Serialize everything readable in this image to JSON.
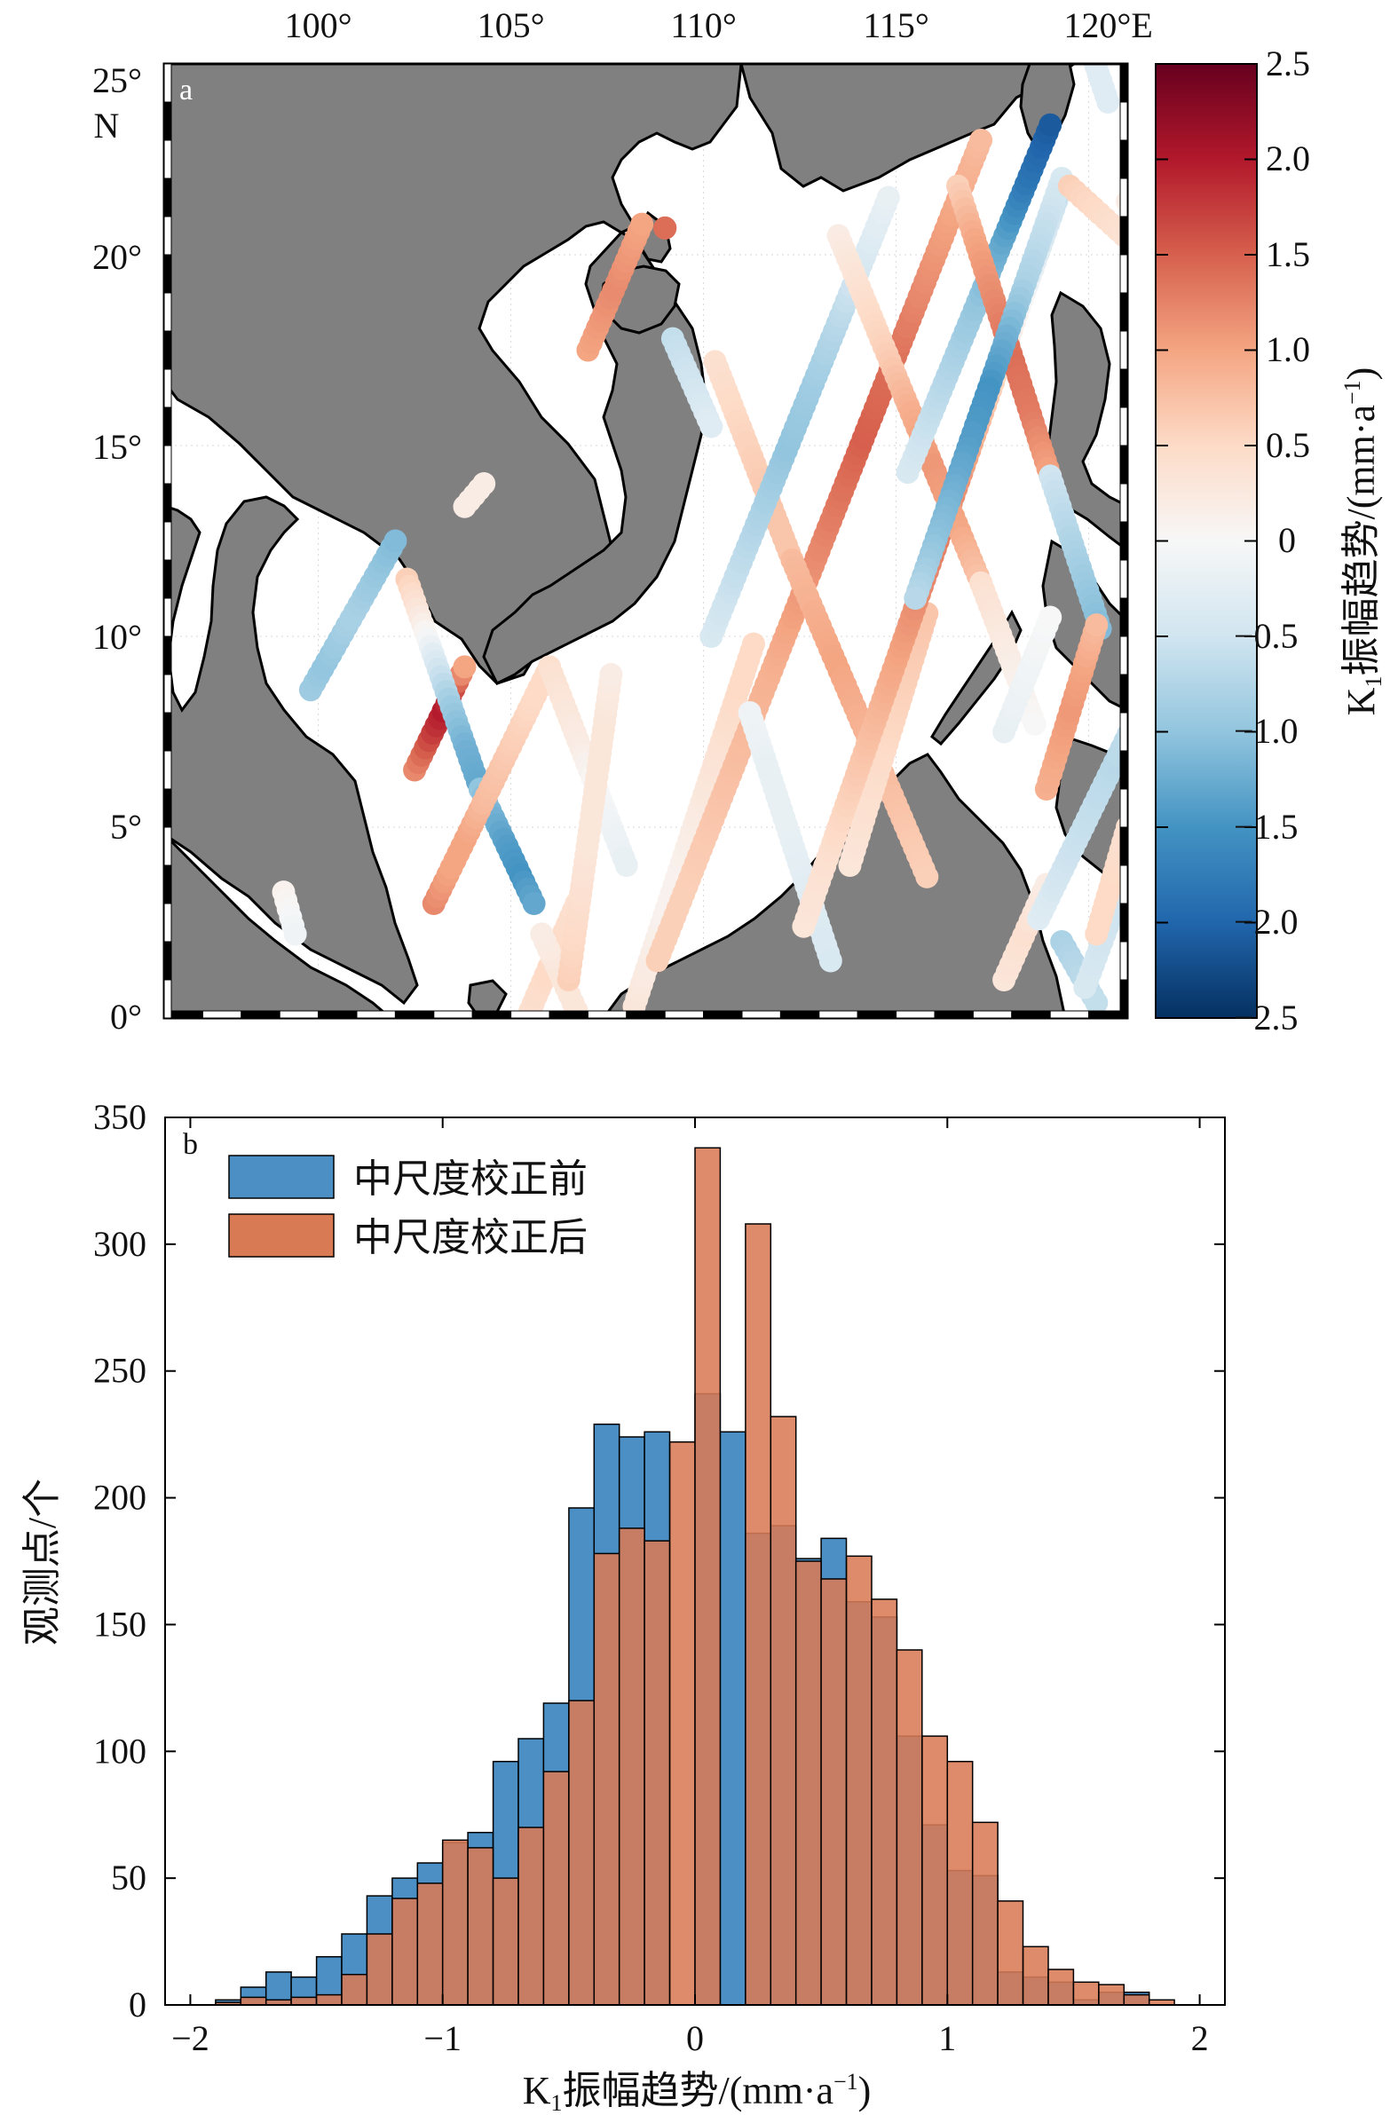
{
  "chart_data": [
    {
      "type": "map",
      "panel_label": "a",
      "lon_ticks": [
        "100°",
        "105°",
        "110°",
        "115°",
        "120°E"
      ],
      "lat_ticks": [
        "25°",
        "20°",
        "15°",
        "10°",
        "5°",
        "0°"
      ],
      "lat_top_suffix": "N",
      "lon_range": [
        96,
        121
      ],
      "lat_range": [
        0,
        25
      ],
      "land_color": "#808080",
      "colorbar": {
        "label_main": "K",
        "label_sub": "1",
        "label_rest": "振幅趋势/(mm·a",
        "label_sup": "−1",
        "label_end": ")",
        "range": [
          -2.5,
          2.5
        ],
        "ticks": [
          "2.5",
          "2.0",
          "1.5",
          "1.0",
          "0.5",
          "0",
          "−0.5",
          "−1.0",
          "−1.5",
          "−2.0",
          "−2.5"
        ],
        "colors": [
          "#053061",
          "#2166ac",
          "#4393c3",
          "#92c5de",
          "#d1e5f0",
          "#f7f7f7",
          "#fddbc7",
          "#f4a582",
          "#d6604d",
          "#b2182b",
          "#67001f"
        ]
      },
      "tracks": [
        {
          "from": [
            99.8,
            8.6
          ],
          "to": [
            102.0,
            12.5
          ],
          "values": [
            -0.9,
            -1.0,
            -0.9,
            -0.8,
            -0.9,
            -1.0,
            -1.1
          ]
        },
        {
          "from": [
            102.5,
            6.5
          ],
          "to": [
            103.8,
            9.2
          ],
          "values": [
            1.2,
            1.5,
            1.8,
            2.0,
            1.6,
            1.0
          ]
        },
        {
          "from": [
            102.3,
            11.5
          ],
          "to": [
            104.2,
            6.0
          ],
          "values": [
            0.6,
            0.2,
            -0.4,
            -0.9,
            -1.2,
            -1.3
          ]
        },
        {
          "from": [
            104.2,
            6.0
          ],
          "to": [
            105.6,
            3.0
          ],
          "values": [
            -1.0,
            -1.2,
            -1.4,
            -1.5,
            -1.3
          ]
        },
        {
          "from": [
            103.0,
            3.0
          ],
          "to": [
            106.0,
            9.2
          ],
          "values": [
            1.2,
            1.0,
            1.0,
            0.8,
            0.7,
            0.6,
            0.5,
            0.5
          ]
        },
        {
          "from": [
            106.0,
            9.2
          ],
          "to": [
            108.0,
            4.0
          ],
          "values": [
            0.4,
            0.3,
            0.2,
            0.0,
            -0.1,
            -0.2
          ]
        },
        {
          "from": [
            105.5,
            0.2
          ],
          "to": [
            106.7,
            3.0
          ],
          "values": [
            0.4,
            0.5,
            0.5,
            0.4
          ]
        },
        {
          "from": [
            106.7,
            0.2
          ],
          "to": [
            105.8,
            2.2
          ],
          "values": [
            0.3,
            0.3,
            0.2
          ]
        },
        {
          "from": [
            106.5,
            1.0
          ],
          "to": [
            107.6,
            9.0
          ],
          "values": [
            0.6,
            0.5,
            0.4,
            0.3,
            0.3,
            0.3,
            0.3,
            0.2
          ]
        },
        {
          "from": [
            108.2,
            0.3
          ],
          "to": [
            111.3,
            9.8
          ],
          "values": [
            0.3,
            0.2,
            0.1,
            0.1,
            0.2,
            0.3,
            0.4,
            0.5,
            0.5
          ]
        },
        {
          "from": [
            108.8,
            1.5
          ],
          "to": [
            117.2,
            23.0
          ],
          "values": [
            0.6,
            0.6,
            0.7,
            0.8,
            0.9,
            1.1,
            1.3,
            1.5,
            1.4,
            1.2,
            1.0,
            0.8
          ]
        },
        {
          "from": [
            107.0,
            17.5
          ],
          "to": [
            108.4,
            20.8
          ],
          "values": [
            1.0,
            1.1,
            1.2,
            1.1,
            1.0
          ]
        },
        {
          "from": [
            109.2,
            17.8
          ],
          "to": [
            110.2,
            15.5
          ],
          "values": [
            -0.6,
            -0.5,
            -0.3
          ]
        },
        {
          "from": [
            110.3,
            17.2
          ],
          "to": [
            112.3,
            12.0
          ],
          "values": [
            0.4,
            0.5,
            0.6,
            0.7,
            0.7
          ]
        },
        {
          "from": [
            112.3,
            12.0
          ],
          "to": [
            115.8,
            3.7
          ],
          "values": [
            0.8,
            0.9,
            1.0,
            0.9,
            0.8,
            0.7,
            0.6
          ]
        },
        {
          "from": [
            110.2,
            10.0
          ],
          "to": [
            114.8,
            21.5
          ],
          "values": [
            -0.4,
            -0.6,
            -0.8,
            -1.0,
            -0.9,
            -0.7,
            -0.4,
            -0.2
          ]
        },
        {
          "from": [
            111.2,
            8.0
          ],
          "to": [
            113.3,
            1.5
          ],
          "values": [
            -0.1,
            -0.2,
            -0.2,
            -0.3,
            -0.4
          ]
        },
        {
          "from": [
            113.8,
            4.0
          ],
          "to": [
            115.8,
            10.6
          ],
          "values": [
            0.3,
            0.4,
            0.5,
            0.6,
            0.7
          ]
        },
        {
          "from": [
            112.6,
            2.4
          ],
          "to": [
            119.3,
            21.8
          ],
          "values": [
            0.3,
            0.4,
            0.6,
            0.8,
            1.0,
            1.2,
            1.3,
            1.0,
            0.6,
            0.1,
            -0.3,
            -0.6
          ]
        },
        {
          "from": [
            113.5,
            20.5
          ],
          "to": [
            117.2,
            11.4
          ],
          "values": [
            0.2,
            0.4,
            0.6,
            0.9,
            1.1,
            1.0,
            0.7
          ]
        },
        {
          "from": [
            117.2,
            11.4
          ],
          "to": [
            118.6,
            7.7
          ],
          "values": [
            0.4,
            0.2,
            0.0
          ]
        },
        {
          "from": [
            115.3,
            14.3
          ],
          "to": [
            119.0,
            23.4
          ],
          "values": [
            -0.4,
            -0.6,
            -0.8,
            -1.0,
            -1.3,
            -1.8,
            -2.1
          ]
        },
        {
          "from": [
            116.6,
            21.8
          ],
          "to": [
            119.0,
            14.2
          ],
          "values": [
            0.6,
            1.0,
            1.2,
            1.4,
            1.3,
            1.0
          ]
        },
        {
          "from": [
            119.0,
            14.2
          ],
          "to": [
            120.3,
            10.2
          ],
          "values": [
            -0.5,
            -0.7,
            -0.9,
            -1.1
          ]
        },
        {
          "from": [
            119.3,
            22.0
          ],
          "to": [
            115.5,
            11.0
          ],
          "values": [
            -0.4,
            -0.6,
            -0.8,
            -1.2,
            -1.5,
            -1.4,
            -1.2,
            -1.0,
            -0.7
          ]
        },
        {
          "from": [
            117.8,
            7.5
          ],
          "to": [
            119.0,
            10.5
          ],
          "values": [
            -0.2,
            -0.1,
            0.0
          ]
        },
        {
          "from": [
            118.9,
            6.0
          ],
          "to": [
            120.2,
            10.3
          ],
          "values": [
            0.9,
            1.0,
            1.1,
            1.0,
            0.8
          ]
        },
        {
          "from": [
            119.5,
            21.8
          ],
          "to": [
            122.0,
            19.5
          ],
          "values": [
            0.6,
            0.4,
            0.2
          ]
        },
        {
          "from": [
            121.0,
            21.4
          ],
          "to": [
            122.0,
            19.0
          ],
          "values": [
            0.2,
            0.1,
            0.0
          ]
        },
        {
          "from": [
            117.8,
            1.0
          ],
          "to": [
            118.9,
            3.5
          ],
          "values": [
            0.3,
            0.4,
            0.2
          ]
        },
        {
          "from": [
            118.7,
            2.6
          ],
          "to": [
            121.3,
            8.0
          ],
          "values": [
            -0.3,
            -0.5,
            -0.6,
            -0.7,
            -0.6
          ]
        },
        {
          "from": [
            119.3,
            2.0
          ],
          "to": [
            120.2,
            0.4
          ],
          "values": [
            -0.8,
            -0.7,
            -0.6
          ]
        },
        {
          "from": [
            119.9,
            0.8
          ],
          "to": [
            121.6,
            5.4
          ],
          "values": [
            -0.4,
            -0.5,
            -0.5,
            -0.4
          ]
        },
        {
          "from": [
            120.2,
            2.2
          ],
          "to": [
            121.0,
            5.0
          ],
          "values": [
            0.5,
            0.5,
            0.4
          ]
        },
        {
          "from": [
            99.1,
            3.3
          ],
          "to": [
            99.4,
            2.2
          ],
          "values": [
            0.1,
            0.0,
            -0.1
          ]
        },
        {
          "from": [
            104.3,
            14.0
          ],
          "to": [
            103.8,
            13.4
          ],
          "values": [
            0.2,
            0.2
          ]
        },
        {
          "from": [
            109.0,
            20.7
          ],
          "to": [
            109.0,
            20.7
          ],
          "values": [
            1.4
          ]
        },
        {
          "from": [
            120.0,
            25.5
          ],
          "to": [
            120.5,
            24.0
          ],
          "values": [
            -0.3,
            -0.3
          ]
        }
      ]
    },
    {
      "type": "bar",
      "panel_label": "b",
      "xlabel_main": "K",
      "xlabel_sub": "1",
      "xlabel_rest": "振幅趋势/(mm·a",
      "xlabel_sup": "−1",
      "xlabel_end": ")",
      "ylabel": "观测点/个",
      "xlim": [
        -2.1,
        2.1
      ],
      "ylim": [
        0,
        350
      ],
      "xticks": [
        -2,
        -1,
        0,
        1,
        2
      ],
      "xtick_labels": [
        "−2",
        "−1",
        "0",
        "1",
        "2"
      ],
      "yticks": [
        0,
        50,
        100,
        150,
        200,
        250,
        300,
        350
      ],
      "ytick_labels": [
        "0",
        "50",
        "100",
        "150",
        "200",
        "250",
        "300",
        "350"
      ],
      "bin_width": 0.1,
      "bin_centers": [
        -1.85,
        -1.75,
        -1.65,
        -1.55,
        -1.45,
        -1.35,
        -1.25,
        -1.15,
        -1.05,
        -0.95,
        -0.85,
        -0.75,
        -0.65,
        -0.55,
        -0.45,
        -0.35,
        -0.25,
        -0.15,
        -0.05,
        0.05,
        0.15,
        0.25,
        0.35,
        0.45,
        0.55,
        0.65,
        0.75,
        0.85,
        0.95,
        1.05,
        1.15,
        1.25,
        1.35,
        1.45,
        1.55,
        1.65,
        1.75,
        1.85
      ],
      "series": [
        {
          "name": "中尺度校正前",
          "color": "#4b8fc4",
          "values": [
            2,
            7,
            13,
            11,
            19,
            28,
            43,
            50,
            56,
            64,
            68,
            96,
            105,
            119,
            196,
            229,
            224,
            226,
            0,
            241,
            226,
            186,
            189,
            176,
            184,
            159,
            153,
            106,
            71,
            53,
            51,
            13,
            11,
            9,
            2,
            5,
            5,
            0
          ]
        },
        {
          "name": "中尺度校正后",
          "color": "#d87b55",
          "values": [
            1,
            3,
            2,
            3,
            4,
            12,
            28,
            42,
            48,
            65,
            62,
            50,
            70,
            92,
            120,
            178,
            188,
            183,
            222,
            338,
            0,
            308,
            232,
            175,
            168,
            177,
            160,
            140,
            106,
            96,
            72,
            41,
            23,
            14,
            9,
            8,
            4,
            2
          ]
        }
      ],
      "legend_position": "top-left"
    }
  ]
}
